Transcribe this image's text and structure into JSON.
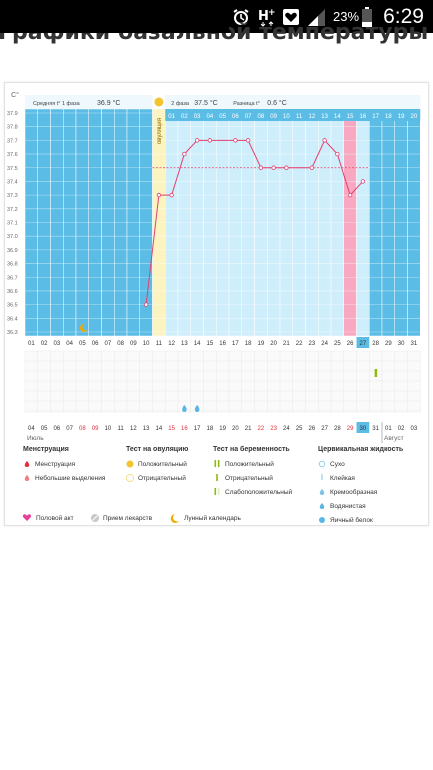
{
  "status_bar": {
    "battery_percent": "23%",
    "time": "6:29",
    "icons": [
      "alarm-icon",
      "hplus-network-icon",
      "heart-icon",
      "signal-icon",
      "battery-icon"
    ]
  },
  "page": {
    "title": "Графики базальной температуры"
  },
  "chart_header": {
    "phase1_label": "Средняя t° 1 фаза",
    "phase1_value": "36.9 °C",
    "phase2_label": "2 фаза",
    "phase2_value": "37.5 °C",
    "diff_label": "Разница t°",
    "diff_value": "0.6 °C",
    "ovulation_label": "овуляция"
  },
  "chart_data": {
    "type": "line",
    "ylabel": "C°",
    "y_ticks": [
      "37.9",
      "37.8",
      "37.7",
      "37.6",
      "37.5",
      "37.4",
      "37.3",
      "37.2",
      "37.1",
      "37.0",
      "36.9",
      "36.8",
      "36.7",
      "36.6",
      "36.5",
      "36.4",
      "36.3"
    ],
    "ylim": [
      36.3,
      37.9
    ],
    "cycle_days": [
      "01",
      "02",
      "03",
      "04",
      "05",
      "06",
      "07",
      "08",
      "09",
      "10",
      "11",
      "12",
      "13",
      "14",
      "15",
      "16",
      "17",
      "18",
      "19",
      "20",
      "21",
      "22",
      "23",
      "24",
      "25",
      "26",
      "27",
      "28",
      "29",
      "30",
      "31"
    ],
    "cycle_day_headers": [
      "01",
      "02",
      "03",
      "04",
      "05",
      "06",
      "07",
      "08",
      "09",
      "10",
      "11",
      "12",
      "13",
      "14",
      "15",
      "16",
      "17",
      "18",
      "19",
      "20"
    ],
    "dates": [
      "04",
      "05",
      "06",
      "07",
      "08",
      "09",
      "10",
      "11",
      "12",
      "13",
      "14",
      "15",
      "16",
      "17",
      "18",
      "19",
      "20",
      "21",
      "22",
      "23",
      "24",
      "25",
      "26",
      "27",
      "28",
      "29",
      "30",
      "31",
      "01",
      "02",
      "03"
    ],
    "red_dates": [
      "08",
      "09",
      "15",
      "16",
      "22",
      "23",
      "29"
    ],
    "month_labels": [
      "Июль",
      "Август"
    ],
    "highlighted_day": "27",
    "highlighted_date": "30",
    "ovulation_day": "11",
    "phase1_avg_line": 36.9,
    "phase2_avg_line": 37.5,
    "series": [
      {
        "x": [
          "10",
          "11",
          "12",
          "13",
          "14",
          "15",
          "17",
          "18",
          "19",
          "20",
          "21",
          "23",
          "24",
          "25",
          "26",
          "27"
        ],
        "values": [
          36.5,
          37.3,
          37.3,
          37.6,
          37.7,
          37.7,
          37.7,
          37.7,
          37.5,
          37.5,
          37.5,
          37.5,
          37.7,
          37.6,
          37.3,
          37.4
        ]
      }
    ],
    "menstruation_days": [
      "01",
      "02",
      "03",
      "04",
      "05",
      "06",
      "07",
      "08",
      "09"
    ],
    "pink_day": "26",
    "moon_marker_day": "05",
    "mucus_markers_days": [
      "13",
      "14"
    ],
    "test_marker_day": "28"
  },
  "legend": {
    "groups": [
      {
        "title": "Менструация",
        "items": [
          "Менструация",
          "Небольшие выделения"
        ]
      },
      {
        "title": "Тест на овуляцию",
        "items": [
          "Положительный",
          "Отрицательный"
        ]
      },
      {
        "title": "Тест на беременность",
        "items": [
          "Положительный",
          "Отрицательный",
          "Слабоположительный"
        ]
      },
      {
        "title": "Цервикальная жидкость",
        "items": [
          "Сухо",
          "Клейкая",
          "Кремообразная",
          "Водянистая",
          "Яичный белок"
        ]
      }
    ],
    "footer": [
      "Половой акт",
      "Прием лекарств",
      "Лунный календарь"
    ]
  },
  "colors": {
    "blue_bg": "#5bbde6",
    "light_blue": "#cfeefb",
    "yellow": "#fbf3c0",
    "pink": "#f8a8c0",
    "line": "#e2406e",
    "sun": "#f4c430"
  }
}
